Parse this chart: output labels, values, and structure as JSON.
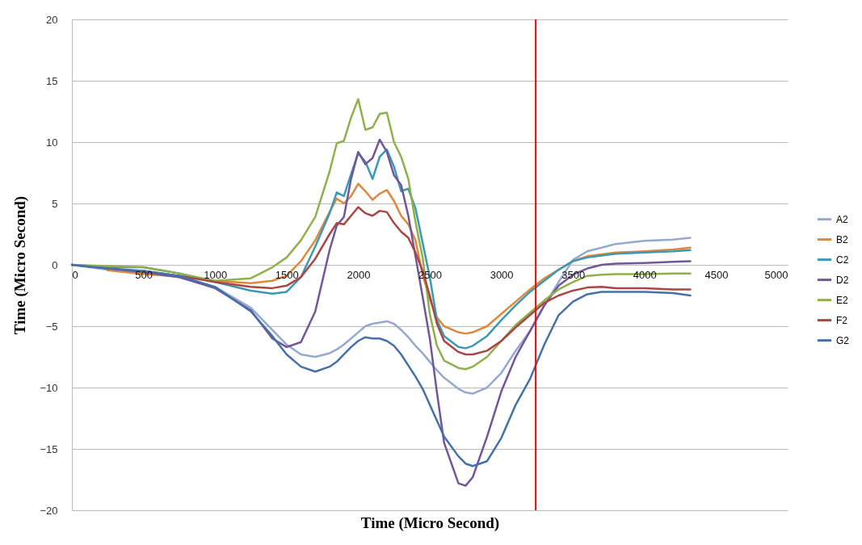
{
  "chart_data": {
    "type": "line",
    "xlabel": "Time (Micro Second)",
    "ylabel": "Time (Micro Second)",
    "x": [
      0,
      250,
      500,
      750,
      1000,
      1250,
      1400,
      1500,
      1600,
      1700,
      1800,
      1850,
      1900,
      1950,
      2000,
      2050,
      2100,
      2150,
      2200,
      2250,
      2300,
      2350,
      2400,
      2450,
      2500,
      2550,
      2600,
      2700,
      2750,
      2800,
      2900,
      3000,
      3100,
      3200,
      3300,
      3400,
      3500,
      3600,
      3700,
      3800,
      4000,
      4200,
      4320
    ],
    "xlim": [
      0,
      5000
    ],
    "xticks": [
      0,
      500,
      1000,
      1500,
      2000,
      2500,
      3000,
      3500,
      4000,
      4500,
      5000
    ],
    "ylim": [
      -20,
      20
    ],
    "yticks": [
      -20,
      -15,
      -10,
      -5,
      0,
      5,
      10,
      15,
      20
    ],
    "grid": "y",
    "legend": "right",
    "series": [
      {
        "name": "A2",
        "color": "#95a9d0",
        "values": [
          0,
          -0.4,
          -0.7,
          -1.0,
          -1.8,
          -3.5,
          -5.3,
          -6.5,
          -7.3,
          -7.5,
          -7.2,
          -6.9,
          -6.5,
          -6.0,
          -5.5,
          -5.0,
          -4.8,
          -4.7,
          -4.6,
          -4.8,
          -5.3,
          -5.9,
          -6.6,
          -7.2,
          -7.9,
          -8.6,
          -9.2,
          -10.1,
          -10.4,
          -10.5,
          -10.0,
          -8.8,
          -7.0,
          -5.4,
          -3.3,
          -1.4,
          0.4,
          1.1,
          1.4,
          1.7,
          1.95,
          2.05,
          2.2
        ]
      },
      {
        "name": "B2",
        "color": "#e0883a",
        "values": [
          null,
          -0.45,
          -0.75,
          -0.9,
          -1.3,
          -1.5,
          -1.3,
          -0.9,
          0.3,
          2.0,
          4.3,
          5.4,
          5.0,
          5.6,
          6.6,
          6.0,
          5.3,
          5.8,
          6.1,
          5.2,
          4.0,
          3.3,
          2.0,
          -0.8,
          -2.8,
          -4.3,
          -5.0,
          -5.5,
          -5.6,
          -5.5,
          -5.0,
          -4.0,
          -3.0,
          -2.0,
          -1.1,
          -0.4,
          0.3,
          0.7,
          0.85,
          1.0,
          1.1,
          1.25,
          1.4
        ]
      },
      {
        "name": "C2",
        "color": "#3a9ab4",
        "values": [
          0,
          -0.2,
          -0.2,
          -0.7,
          -1.4,
          -2.1,
          -2.35,
          -2.2,
          -1.0,
          1.5,
          4.2,
          5.9,
          5.6,
          7.4,
          9.1,
          8.4,
          7.0,
          8.8,
          9.4,
          8.0,
          6.0,
          6.2,
          4.6,
          1.8,
          -1.0,
          -4.5,
          -5.8,
          -6.7,
          -6.8,
          -6.6,
          -5.8,
          -4.5,
          -3.3,
          -2.2,
          -1.3,
          -0.4,
          0.3,
          0.6,
          0.75,
          0.9,
          1.0,
          1.1,
          1.2
        ]
      },
      {
        "name": "D2",
        "color": "#73559a",
        "values": [
          0,
          -0.3,
          -0.6,
          -1.0,
          -1.9,
          -3.7,
          -6.0,
          -6.7,
          -6.3,
          -3.8,
          1.2,
          3.2,
          3.9,
          7.0,
          9.2,
          8.2,
          8.7,
          10.2,
          9.2,
          7.3,
          6.5,
          4.0,
          0.7,
          -2.6,
          -6.0,
          -10.4,
          -14.5,
          -17.8,
          -18.0,
          -17.3,
          -14.0,
          -10.3,
          -7.5,
          -5.4,
          -3.3,
          -1.7,
          -0.8,
          -0.3,
          0.0,
          0.1,
          0.15,
          0.25,
          0.3
        ]
      },
      {
        "name": "E2",
        "color": "#8fb04a",
        "values": [
          0,
          -0.1,
          -0.2,
          -0.7,
          -1.3,
          -1.1,
          -0.2,
          0.6,
          2.0,
          3.9,
          7.6,
          9.9,
          10.1,
          12.0,
          13.5,
          11.0,
          11.2,
          12.3,
          12.4,
          10.0,
          8.8,
          7.0,
          3.5,
          0.6,
          -4.0,
          -6.6,
          -7.8,
          -8.4,
          -8.5,
          -8.3,
          -7.5,
          -6.2,
          -4.9,
          -3.9,
          -2.9,
          -2.0,
          -1.4,
          -0.9,
          -0.8,
          -0.75,
          -0.75,
          -0.7,
          -0.7
        ]
      },
      {
        "name": "F2",
        "color": "#aa4643",
        "values": [
          null,
          null,
          -0.5,
          -0.9,
          -1.4,
          -1.8,
          -1.9,
          -1.7,
          -1.0,
          0.5,
          2.5,
          3.4,
          3.3,
          4.0,
          4.7,
          4.2,
          4.0,
          4.4,
          4.3,
          3.4,
          2.7,
          2.2,
          1.0,
          -0.5,
          -2.5,
          -4.8,
          -6.2,
          -7.1,
          -7.3,
          -7.3,
          -7.0,
          -6.2,
          -5.1,
          -4.1,
          -3.1,
          -2.5,
          -2.1,
          -1.85,
          -1.8,
          -1.9,
          -1.9,
          -2.0,
          -2.0
        ]
      },
      {
        "name": "G2",
        "color": "#4471a8",
        "values": [
          0,
          -0.3,
          -0.5,
          -0.9,
          -1.8,
          -3.8,
          -5.8,
          -7.3,
          -8.3,
          -8.7,
          -8.3,
          -7.9,
          -7.3,
          -6.7,
          -6.2,
          -5.9,
          -6.0,
          -6.0,
          -6.2,
          -6.6,
          -7.3,
          -8.2,
          -9.1,
          -10.1,
          -11.4,
          -12.7,
          -14.0,
          -15.6,
          -16.2,
          -16.4,
          -16.0,
          -14.1,
          -11.4,
          -9.3,
          -6.5,
          -4.1,
          -3.0,
          -2.4,
          -2.2,
          -2.2,
          -2.2,
          -2.3,
          -2.5
        ]
      }
    ],
    "ref_lines": [
      {
        "axis": "x",
        "value": 3240,
        "color": "#ff0000"
      }
    ]
  }
}
